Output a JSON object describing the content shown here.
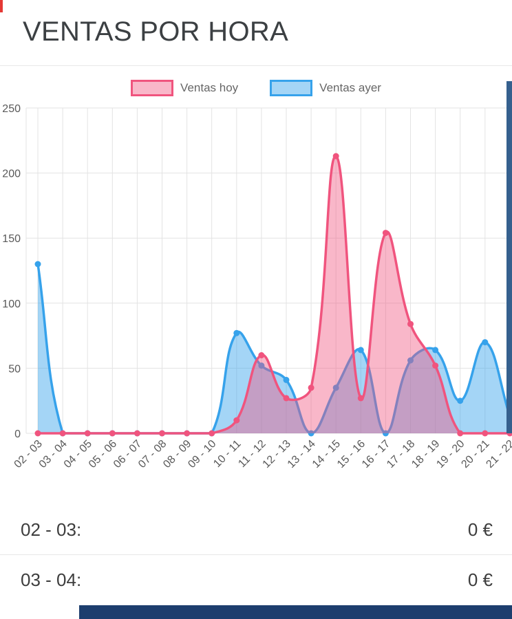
{
  "header": {
    "title": "VENTAS POR HORA"
  },
  "chart_data": {
    "type": "line",
    "title": "VENTAS POR HORA",
    "categories": [
      "02 - 03",
      "03 - 04",
      "04 - 05",
      "05 - 06",
      "06 - 07",
      "07 - 08",
      "08 - 09",
      "09 - 10",
      "10 - 11",
      "11 - 12",
      "12 - 13",
      "13 - 14",
      "14 - 15",
      "15 - 16",
      "16 - 17",
      "17 - 18",
      "18 - 19",
      "19 - 20",
      "20 - 21",
      "21 - 22"
    ],
    "series": [
      {
        "name": "Ventas hoy",
        "color": "#f0547e",
        "fill": "rgba(240,84,126,0.42)",
        "values": [
          0,
          0,
          0,
          0,
          0,
          0,
          0,
          0,
          10,
          60,
          27,
          35,
          213,
          27,
          154,
          84,
          52,
          0,
          0,
          0
        ]
      },
      {
        "name": "Ventas ayer",
        "color": "#36a2eb",
        "fill": "rgba(54,162,235,0.45)",
        "values": [
          130,
          0,
          0,
          0,
          0,
          0,
          0,
          0,
          77,
          52,
          41,
          0,
          35,
          64,
          0,
          56,
          64,
          25,
          70,
          13
        ]
      }
    ],
    "ylim": [
      0,
      250
    ],
    "yticks": [
      0,
      50,
      100,
      150,
      200,
      250
    ],
    "grid": true,
    "legend_position": "top"
  },
  "rows": [
    {
      "label": "02 - 03:",
      "value": "0 €"
    },
    {
      "label": "03 - 04:",
      "value": "0 €"
    }
  ],
  "colors": {
    "bottom_bar": "#1d3e6e",
    "right_scrollbar": "#35608e",
    "top_left_artifact": "#e53935",
    "divider": "#e7e7e7",
    "grid": "#e3e3e3",
    "title_text": "#3c4043",
    "tick_text": "#595959"
  }
}
